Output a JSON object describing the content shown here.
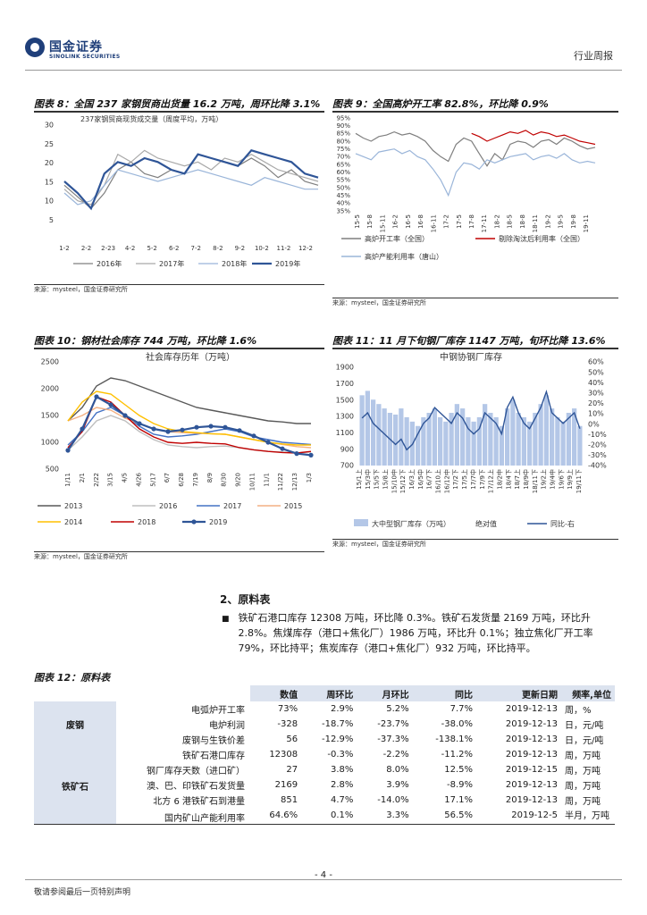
{
  "header": {
    "logo_cn": "国金证券",
    "logo_en": "SINOLINK SECURITIES",
    "report_type": "行业周报"
  },
  "chart8": {
    "title": "图表 8：全国 237 家钢贸商出货量 16.2 万吨，周环比降 3.1%",
    "source": "来源：mysteel，国金证券研究所",
    "chart_data": {
      "type": "line",
      "title": "237家钢贸商现货成交量（周度平均，万吨）",
      "x_ticks": [
        "1-2",
        "2-2",
        "2-23",
        "4-2",
        "5-2",
        "6-2",
        "7-2",
        "8-2",
        "9-2",
        "10-2",
        "11-2",
        "12-2"
      ],
      "y_ticks": [
        "30",
        "25",
        "20",
        "15",
        "10",
        "5"
      ],
      "ylim": [
        0,
        30
      ],
      "series": [
        {
          "name": "2016年",
          "color": "#7f7f7f",
          "values": [
            14,
            11,
            8,
            12,
            18,
            20,
            17,
            16,
            18,
            17,
            22,
            21,
            20,
            19,
            21,
            19,
            16,
            18,
            15,
            14
          ]
        },
        {
          "name": "2017年",
          "color": "#a9a9a9",
          "values": [
            13,
            10,
            9,
            14,
            22,
            20,
            23,
            21,
            20,
            19,
            20,
            18,
            21,
            20,
            22,
            20,
            18,
            17,
            16,
            15
          ]
        },
        {
          "name": "2018年",
          "color": "#9ab5d9",
          "values": [
            12,
            9,
            10,
            14,
            18,
            17,
            16,
            15,
            16,
            17,
            18,
            17,
            16,
            15,
            14,
            16,
            15,
            14,
            13,
            13
          ]
        },
        {
          "name": "2019年",
          "color": "#2f5597",
          "values": [
            15,
            12,
            8,
            17,
            20,
            19,
            21,
            20,
            18,
            17,
            22,
            21,
            20,
            19,
            23,
            22,
            21,
            20,
            17,
            16
          ]
        }
      ]
    }
  },
  "chart9": {
    "title": "图表 9：全国高炉开工率 82.8%，环比降 0.9%",
    "source": "来源：mysteel，国金证券研究所",
    "chart_data": {
      "type": "line",
      "x_ticks": [
        "15-5",
        "15-8",
        "15-11",
        "16-2",
        "16-5",
        "16-8",
        "16-11",
        "17-2",
        "17-5",
        "17-8",
        "17-11",
        "18-2",
        "18-5",
        "18-8",
        "18-11",
        "19-2",
        "19-5",
        "19-8",
        "19-11"
      ],
      "y_ticks": [
        "95%",
        "90%",
        "85%",
        "80%",
        "75%",
        "70%",
        "65%",
        "60%",
        "55%",
        "50%",
        "45%",
        "40%",
        "35%"
      ],
      "ylim": [
        35,
        95
      ],
      "series": [
        {
          "name": "高炉开工率（全国）",
          "color": "#7f7f7f",
          "values": [
            85,
            82,
            80,
            83,
            84,
            86,
            84,
            85,
            83,
            80,
            74,
            70,
            67,
            78,
            82,
            80,
            72,
            64,
            72,
            68,
            78,
            80,
            79,
            76,
            80,
            81,
            78,
            82,
            80,
            77,
            75,
            76
          ]
        },
        {
          "name": "剔除淘汰后利用率（全国）",
          "color": "#c00000",
          "values": [
            null,
            null,
            null,
            null,
            null,
            null,
            null,
            null,
            null,
            null,
            null,
            null,
            null,
            null,
            null,
            85,
            83,
            80,
            82,
            84,
            86,
            85,
            87,
            84,
            86,
            85,
            83,
            84,
            82,
            80,
            79,
            78
          ]
        },
        {
          "name": "高炉产能利用率（唐山）",
          "color": "#9ab5d9",
          "values": [
            72,
            70,
            68,
            73,
            74,
            75,
            72,
            74,
            70,
            68,
            62,
            55,
            45,
            60,
            66,
            65,
            62,
            68,
            66,
            68,
            70,
            71,
            72,
            68,
            70,
            71,
            69,
            72,
            68,
            66,
            67,
            66
          ]
        }
      ]
    }
  },
  "chart10": {
    "title": "图表 10：钢材社会库存 744 万吨，环比降 1.6%",
    "source": "来源：mysteel，国金证券研究所",
    "chart_data": {
      "type": "line",
      "title": "社会库存历年（万吨）",
      "x_ticks": [
        "1/11",
        "2/1",
        "2/22",
        "3/15",
        "4/5",
        "4/26",
        "5/17",
        "6/7",
        "6/28",
        "7/19",
        "8/9",
        "8/30",
        "9/20",
        "10/11",
        "11/1",
        "11/22",
        "12/13",
        "1/3"
      ],
      "y_ticks": [
        "2500",
        "2000",
        "1500",
        "1000",
        "500"
      ],
      "ylim": [
        500,
        2500
      ],
      "series": [
        {
          "name": "2013",
          "color": "#595959",
          "values": [
            1400,
            1650,
            2050,
            2200,
            2150,
            2050,
            1950,
            1850,
            1750,
            1650,
            1600,
            1550,
            1500,
            1450,
            1400,
            1380,
            1350,
            1350
          ]
        },
        {
          "name": "2016",
          "color": "#bfbfbf",
          "values": [
            850,
            1100,
            1400,
            1500,
            1400,
            1200,
            1050,
            950,
            920,
            900,
            920,
            930,
            900,
            860,
            830,
            820,
            800,
            820
          ]
        },
        {
          "name": "2017",
          "color": "#4472c4",
          "values": [
            950,
            1200,
            1550,
            1650,
            1500,
            1300,
            1150,
            1100,
            1120,
            1150,
            1200,
            1250,
            1200,
            1100,
            1050,
            1000,
            980,
            960
          ]
        },
        {
          "name": "2015",
          "color": "#f4b183",
          "values": [
            1400,
            1500,
            1650,
            1600,
            1450,
            1350,
            1250,
            1200,
            1180,
            1170,
            1160,
            1150,
            1100,
            1050,
            1000,
            960,
            920,
            900
          ]
        },
        {
          "name": "2014",
          "color": "#ffc000",
          "values": [
            1400,
            1750,
            1950,
            1900,
            1700,
            1500,
            1350,
            1250,
            1200,
            1180,
            1160,
            1150,
            1100,
            1050,
            1000,
            970,
            950,
            950
          ]
        },
        {
          "name": "2018",
          "color": "#c00000",
          "values": [
            900,
            1200,
            1850,
            1750,
            1500,
            1250,
            1100,
            1000,
            980,
            1000,
            980,
            970,
            900,
            860,
            830,
            810,
            800,
            830
          ]
        },
        {
          "name": "2019",
          "color": "#2f5597",
          "values": [
            850,
            1250,
            1850,
            1700,
            1500,
            1350,
            1250,
            1200,
            1230,
            1280,
            1300,
            1280,
            1220,
            1120,
            1000,
            880,
            790,
            760
          ]
        }
      ]
    }
  },
  "chart11": {
    "title": "图表 11：11 月下旬钢厂库存 1147 万吨，旬环比降 13.6%",
    "source": "来源：mysteel，国金证券研究所",
    "chart_data": {
      "type": "bar",
      "title": "中钢协钢厂库存",
      "x_ticks": [
        "15/1上",
        "15/3中",
        "15/5下",
        "15/8上",
        "15/10中",
        "15/12下",
        "16/3上",
        "16/5中",
        "16/7下",
        "16/10上",
        "16/12中",
        "17/2下",
        "17/5上",
        "17/7中",
        "17/9下",
        "17/12上",
        "18/2中",
        "18/4下",
        "18/7上",
        "18/9中",
        "18/11下",
        "19/2上",
        "19/4中",
        "19/6下",
        "19/9上",
        "19/11下"
      ],
      "y_ticks_left": [
        "1900",
        "1700",
        "1500",
        "1300",
        "1100",
        "900",
        "700"
      ],
      "y_ticks_right": [
        "60%",
        "50%",
        "40%",
        "30%",
        "20%",
        "10%",
        "0%",
        "-10%",
        "-20%",
        "-30%",
        "-40%"
      ],
      "ylim_left": [
        700,
        1900
      ],
      "ylim_right": [
        -40,
        60
      ],
      "legend": [
        "大中型钢厂库存（万吨）",
        "绝对值",
        "同比-右"
      ],
      "series": [
        {
          "name": "大中型钢厂库存（万吨）",
          "color": "#b4c7e7",
          "values": [
            1500,
            1550,
            1450,
            1400,
            1350,
            1300,
            1280,
            1350,
            1250,
            1200,
            1150,
            1250,
            1300,
            1350,
            1250,
            1200,
            1300,
            1400,
            1350,
            1250,
            1200,
            1250,
            1400,
            1300,
            1250,
            1150,
            1350,
            1450,
            1300,
            1250,
            1200,
            1300,
            1400,
            1500,
            1350,
            1250,
            1200,
            1300,
            1350,
            1150
          ]
        },
        {
          "name": "同比-右",
          "color": "#2f5597",
          "values": [
            5,
            10,
            0,
            -5,
            -10,
            -15,
            -20,
            -15,
            -25,
            -20,
            -10,
            0,
            5,
            15,
            10,
            5,
            0,
            10,
            5,
            -5,
            -10,
            -5,
            10,
            5,
            0,
            -10,
            15,
            25,
            10,
            0,
            -5,
            5,
            15,
            30,
            10,
            5,
            0,
            5,
            10,
            -5
          ]
        }
      ]
    }
  },
  "section": {
    "title": "2、原料表",
    "bullet": "铁矿石港口库存 12308 万吨，环比降 0.3%。铁矿石发货量 2169 万吨，环比升 2.8%。焦煤库存（港口+焦化厂）1986 万吨，环比升 0.1%；独立焦化厂开工率 79%，环比持平；焦炭库存（港口+焦化厂）932 万吨，环比持平。"
  },
  "table": {
    "title": "图表 12：原料表",
    "headers": [
      "数值",
      "周环比",
      "月环比",
      "同比",
      "更新日期",
      "频率,单位"
    ],
    "groups": [
      {
        "category": "废钢",
        "rows": [
          {
            "item": "电弧炉开工率",
            "value": "73%",
            "wow": "2.9%",
            "mom": "5.2%",
            "yoy": "7.7%",
            "date": "2019-12-13",
            "freq": "周，%"
          },
          {
            "item": "电炉利润",
            "value": "-328",
            "wow": "-18.7%",
            "mom": "-23.7%",
            "yoy": "-38.0%",
            "date": "2019-12-13",
            "freq": "日，元/吨"
          },
          {
            "item": "废钢与生铁价差",
            "value": "56",
            "wow": "-12.9%",
            "mom": "-37.3%",
            "yoy": "-138.1%",
            "date": "2019-12-13",
            "freq": "日，元/吨"
          }
        ]
      },
      {
        "category": "铁矿石",
        "rows": [
          {
            "item": "铁矿石港口库存",
            "value": "12308",
            "wow": "-0.3%",
            "mom": "-2.2%",
            "yoy": "-11.2%",
            "date": "2019-12-13",
            "freq": "周，万吨"
          },
          {
            "item": "钢厂库存天数（进口矿）",
            "value": "27",
            "wow": "3.8%",
            "mom": "8.0%",
            "yoy": "12.5%",
            "date": "2019-12-15",
            "freq": "周，万吨"
          },
          {
            "item": "澳、巴、印铁矿石发货量",
            "value": "2169",
            "wow": "2.8%",
            "mom": "3.9%",
            "yoy": "-8.9%",
            "date": "2019-12-13",
            "freq": "周，万吨"
          },
          {
            "item": "北方 6 港铁矿石到港量",
            "value": "851",
            "wow": "4.7%",
            "mom": "-14.0%",
            "yoy": "17.1%",
            "date": "2019-12-13",
            "freq": "周，万吨"
          },
          {
            "item": "国内矿山产能利用率",
            "value": "64.6%",
            "wow": "0.1%",
            "mom": "3.3%",
            "yoy": "56.5%",
            "date": "2019-12-5",
            "freq": "半月，万吨"
          }
        ]
      }
    ]
  },
  "footer": {
    "page": "- 4 -",
    "disclaimer": "敬请参阅最后一页特别声明"
  }
}
